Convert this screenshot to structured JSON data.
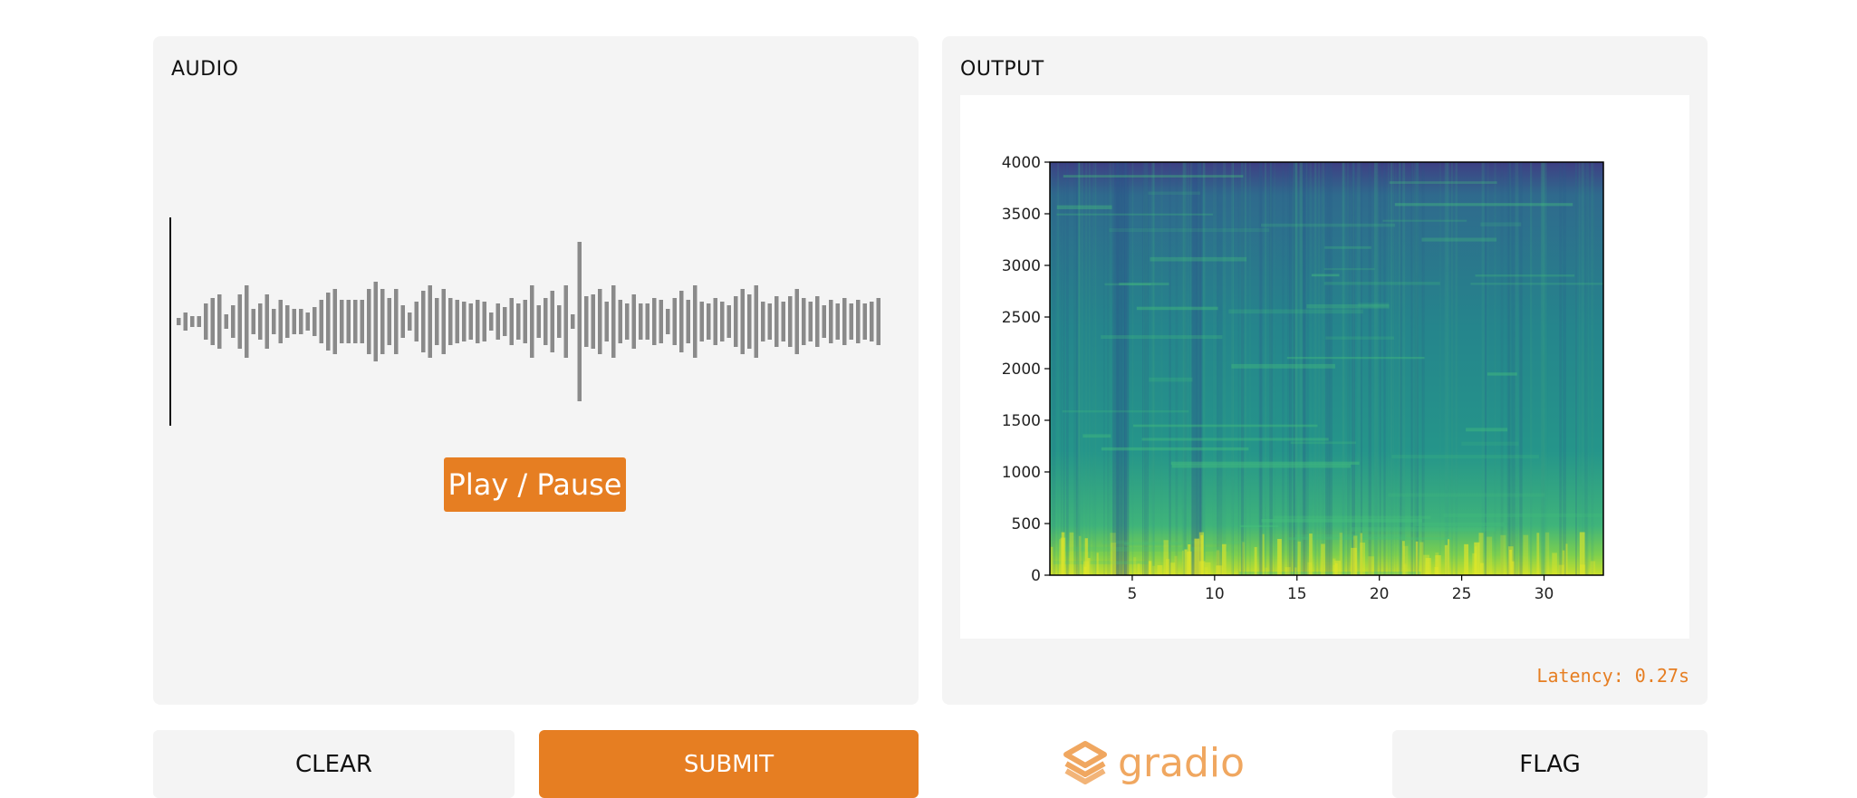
{
  "input": {
    "label": "AUDIO",
    "play_pause_label": "Play / Pause"
  },
  "output": {
    "label": "OUTPUT",
    "latency": "Latency: 0.27s",
    "chart_data": {
      "type": "heatmap",
      "title": "",
      "xlabel": "",
      "ylabel": "",
      "xlim": [
        0,
        33.6
      ],
      "ylim": [
        0,
        4000
      ],
      "x_ticks": [
        5,
        10,
        15,
        20,
        25,
        30
      ],
      "y_ticks": [
        0,
        500,
        1000,
        1500,
        2000,
        2500,
        3000,
        3500,
        4000
      ],
      "colormap": "viridis"
    }
  },
  "actions": {
    "clear_label": "CLEAR",
    "submit_label": "SUBMIT",
    "flag_label": "FLAG"
  },
  "brand": {
    "name": "gradio",
    "icon": "gradio-logo-icon"
  },
  "colors": {
    "accent": "#e67e22",
    "panel_bg": "#f4f4f4",
    "waveform": "#8a8a8a",
    "brand": "#f0a760"
  }
}
